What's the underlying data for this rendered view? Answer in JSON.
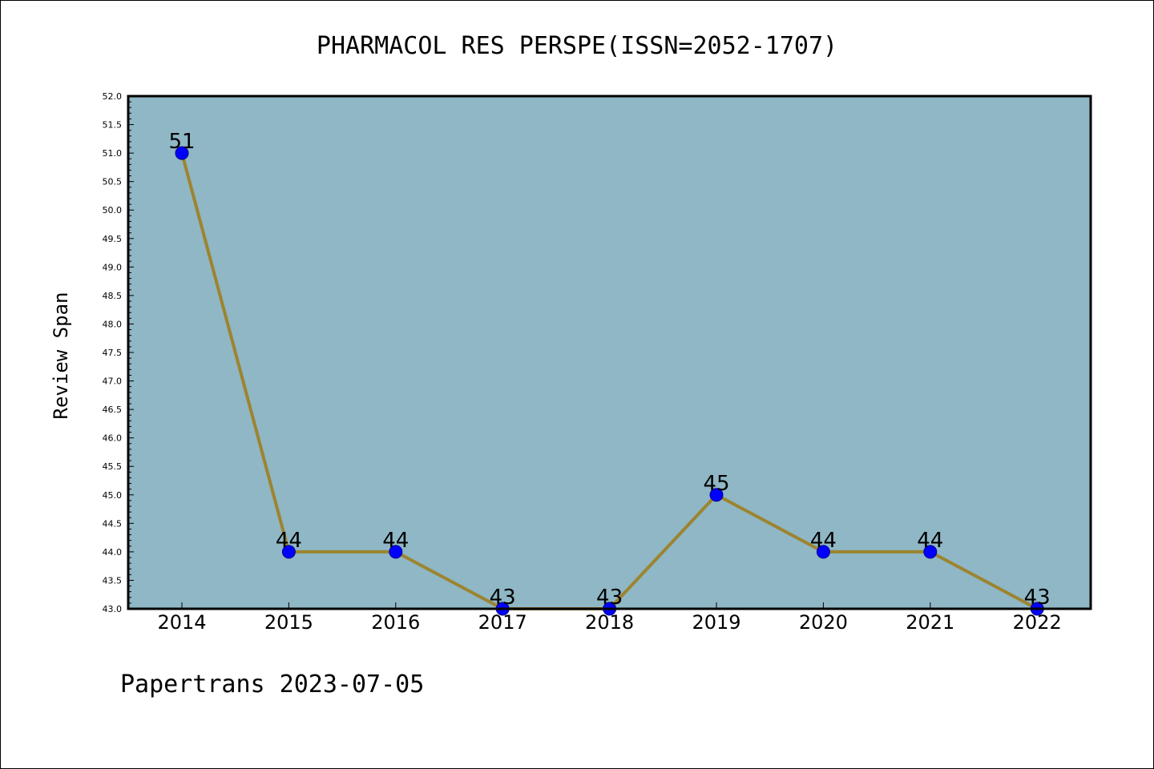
{
  "chart_data": {
    "type": "line",
    "title": "PHARMACOL RES PERSPE(ISSN=2052-1707)",
    "ylabel": "Review Span",
    "xlabel": "",
    "categories": [
      "2014",
      "2015",
      "2016",
      "2017",
      "2018",
      "2019",
      "2020",
      "2021",
      "2022"
    ],
    "values": [
      51,
      44,
      44,
      43,
      43,
      45,
      44,
      44,
      43
    ],
    "data_labels": [
      "51",
      "44",
      "44",
      "43",
      "43",
      "45",
      "44",
      "44",
      "43"
    ],
    "ylim": [
      43.0,
      52.0
    ],
    "y_ticks": [
      "43.0",
      "43.5",
      "44.0",
      "44.5",
      "45.0",
      "45.5",
      "46.0",
      "46.5",
      "47.0",
      "47.5",
      "48.0",
      "48.5",
      "49.0",
      "49.5",
      "50.0",
      "50.5",
      "51.0",
      "51.5",
      "52.0"
    ],
    "grid": false,
    "colors": {
      "plot_background": "#8fb7c5",
      "line": "#9c8430",
      "marker": "#0000ff",
      "marker_edge": "#00008b"
    }
  },
  "footer": {
    "text": "Papertrans 2023-07-05"
  }
}
